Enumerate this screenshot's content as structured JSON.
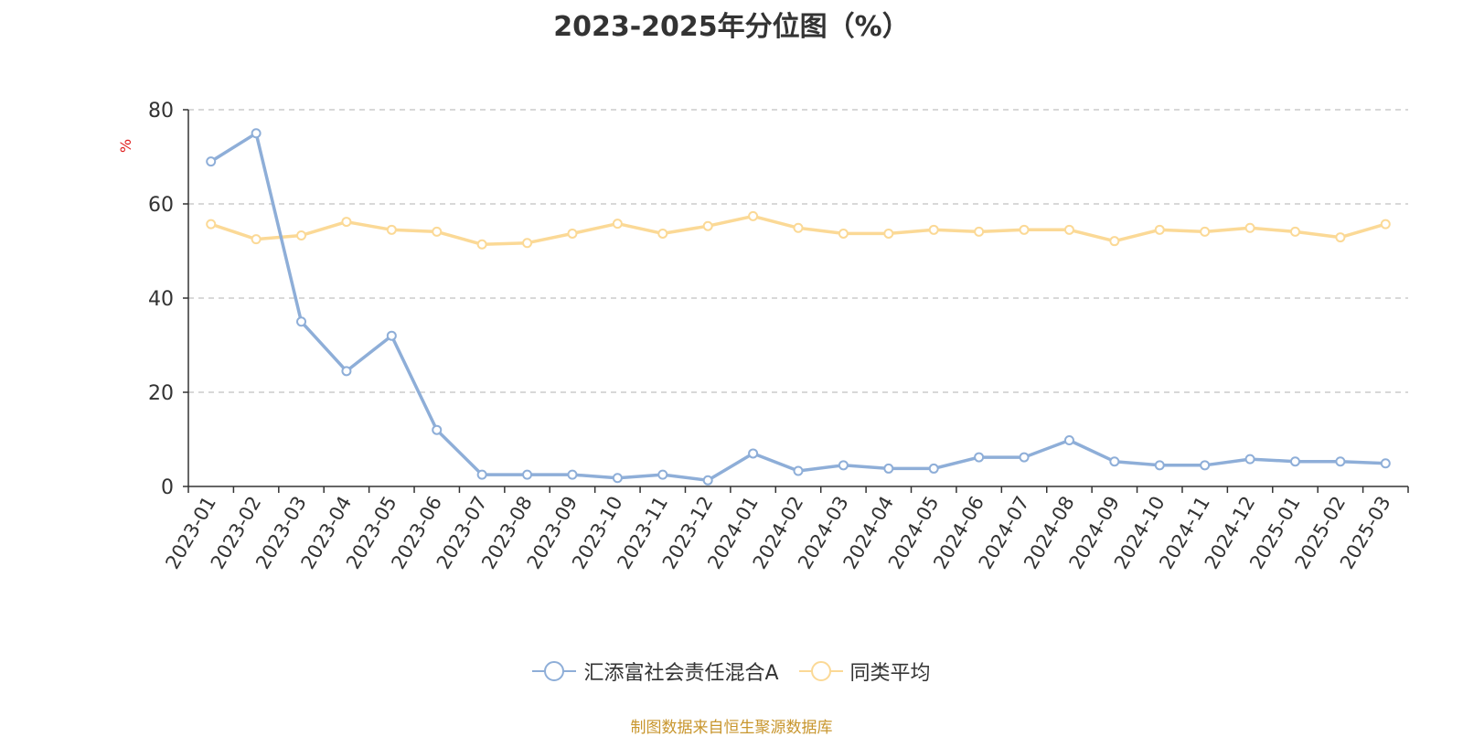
{
  "title": "2023-2025年分位图（%）",
  "source_note": "制图数据来自恒生聚源数据库",
  "chart_data": {
    "type": "line",
    "title": "2023-2025年分位图（%）",
    "unit_label": "%",
    "xlabel": "",
    "ylabel": "",
    "ylim": [
      0,
      80
    ],
    "yticks": [
      0,
      20,
      40,
      60,
      80
    ],
    "grid": true,
    "legend_position": "bottom-center",
    "categories": [
      "2023-01",
      "2023-02",
      "2023-03",
      "2023-04",
      "2023-05",
      "2023-06",
      "2023-07",
      "2023-08",
      "2023-09",
      "2023-10",
      "2023-11",
      "2023-12",
      "2024-01",
      "2024-02",
      "2024-03",
      "2024-04",
      "2024-05",
      "2024-06",
      "2024-07",
      "2024-08",
      "2024-09",
      "2024-10",
      "2024-11",
      "2024-12",
      "2025-01",
      "2025-02",
      "2025-03"
    ],
    "series": [
      {
        "name": "汇添富社会责任混合A",
        "color": "#8eaed8",
        "values": [
          69,
          75,
          35,
          24.5,
          32,
          12,
          2.5,
          2.5,
          2.5,
          1.8,
          2.5,
          1.3,
          7,
          3.3,
          4.5,
          3.8,
          3.8,
          6.2,
          6.2,
          9.8,
          5.3,
          4.5,
          4.5,
          5.8,
          5.3,
          5.3,
          4.9
        ]
      },
      {
        "name": "同类平均",
        "color": "#fbd996",
        "values": [
          55.7,
          52.5,
          53.3,
          56.2,
          54.5,
          54.1,
          51.4,
          51.7,
          53.7,
          55.8,
          53.7,
          55.3,
          57.4,
          54.9,
          53.7,
          53.7,
          54.5,
          54.1,
          54.5,
          54.5,
          52.1,
          54.5,
          54.1,
          54.9,
          54.1,
          52.9,
          55.7
        ]
      }
    ]
  }
}
